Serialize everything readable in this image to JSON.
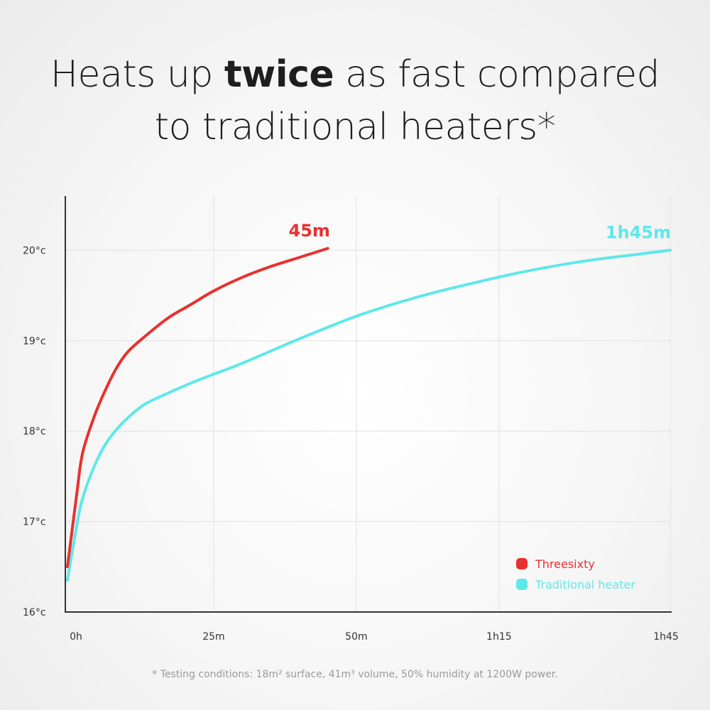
{
  "headline": {
    "part1": "Heats up ",
    "emphasis": "twice",
    "part2": " as fast compared",
    "line2": "to traditional heaters*"
  },
  "footnote": "* Testing conditions: 18m² surface, 41m³ volume, 50% humidity at 1200W power.",
  "chart_data": {
    "type": "line",
    "x_unit": "minutes",
    "x_ticks": [
      {
        "value": 0,
        "label": "0h"
      },
      {
        "value": 25,
        "label": "25m"
      },
      {
        "value": 50,
        "label": "50m"
      },
      {
        "value": 75,
        "label": "1h15"
      },
      {
        "value": 105,
        "label": "1h45"
      }
    ],
    "y_ticks": [
      {
        "value": 16,
        "label": "16°c"
      },
      {
        "value": 17,
        "label": "17°c"
      },
      {
        "value": 18,
        "label": "18°c"
      },
      {
        "value": 19,
        "label": "19°c"
      },
      {
        "value": 20,
        "label": "20°c"
      }
    ],
    "xlim": [
      0,
      105
    ],
    "ylim": [
      16,
      20.6
    ],
    "grid": true,
    "legend_position": "bottom-right",
    "series": [
      {
        "name": "Threesixty",
        "color": "#e8312f",
        "end_label": "45m",
        "x": [
          0,
          1,
          2,
          4,
          6,
          8,
          10,
          13,
          17,
          21,
          25,
          30,
          35,
          40,
          45
        ],
        "y": [
          16.5,
          17.3,
          17.75,
          18.15,
          18.45,
          18.7,
          18.88,
          19.05,
          19.25,
          19.4,
          19.55,
          19.7,
          19.82,
          19.92,
          20.02
        ]
      },
      {
        "name": "Traditional heater",
        "color": "#5ee8ea",
        "end_label": "1h45m",
        "x": [
          0,
          1,
          2,
          4,
          6,
          8,
          10,
          13,
          17,
          21,
          25,
          30,
          40,
          50,
          60,
          70,
          80,
          90,
          100,
          105
        ],
        "y": [
          16.35,
          16.95,
          17.25,
          17.6,
          17.85,
          18.02,
          18.15,
          18.3,
          18.42,
          18.53,
          18.63,
          18.75,
          19.02,
          19.27,
          19.47,
          19.63,
          19.77,
          19.88,
          19.96,
          20.0
        ]
      }
    ]
  }
}
